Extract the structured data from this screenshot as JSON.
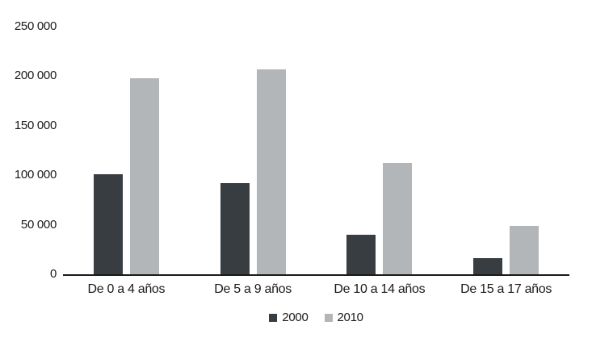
{
  "chart_data": {
    "type": "bar",
    "title": "",
    "categories": [
      "De 0 a 4 años",
      "De 5 a 9 años",
      "De 10 a 14 años",
      "De 15 a 17 años"
    ],
    "series": [
      {
        "name": "2000",
        "color": "#383d41",
        "values": [
          101000,
          92000,
          40000,
          16000
        ]
      },
      {
        "name": "2010",
        "color": "#b3b6b8",
        "values": [
          198000,
          207000,
          112000,
          49000
        ]
      }
    ],
    "ylim": [
      0,
      250000
    ],
    "ytick_step": 50000,
    "ytick_labels": [
      "0",
      "50 000",
      "100 000",
      "150 000",
      "200 000",
      "250 000"
    ],
    "grid": false,
    "legend_position": "bottom-center",
    "axis_color": "#1a1a1a",
    "background_color": "#ffffff"
  }
}
